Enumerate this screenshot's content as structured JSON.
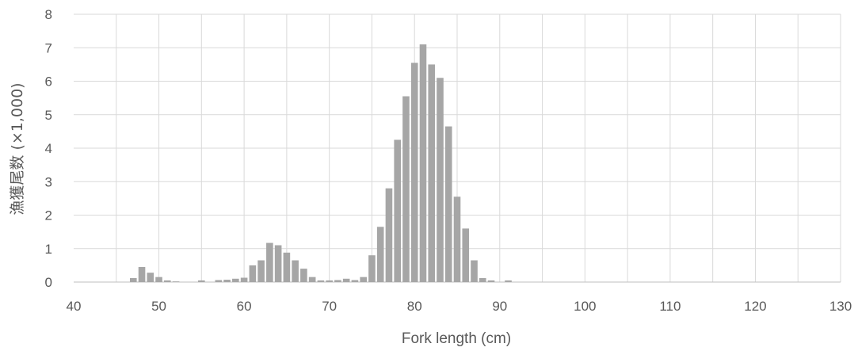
{
  "chart_data": {
    "type": "bar",
    "title": "",
    "xlabel": "Fork length (cm)",
    "ylabel": "漁獲尾数 (×1,000)",
    "xlim": [
      40,
      130
    ],
    "ylim": [
      0,
      8
    ],
    "xticks": [
      40,
      50,
      60,
      70,
      80,
      90,
      100,
      110,
      120,
      130
    ],
    "yticks": [
      0,
      1,
      2,
      3,
      4,
      5,
      6,
      7,
      8
    ],
    "grid": true,
    "legend": "none",
    "bar_color": "#a6a6a6",
    "series": [
      {
        "x": [
          47,
          48,
          49,
          50,
          51,
          52,
          55,
          57,
          58,
          59,
          60,
          61,
          62,
          63,
          64,
          65,
          66,
          67,
          68,
          69,
          70,
          71,
          72,
          73,
          74,
          75,
          76,
          77,
          78,
          79,
          80,
          81,
          82,
          83,
          84,
          85,
          86,
          87,
          88,
          89,
          91
        ],
        "values": [
          0.12,
          0.45,
          0.28,
          0.15,
          0.05,
          0.02,
          0.05,
          0.06,
          0.07,
          0.1,
          0.13,
          0.5,
          0.65,
          1.17,
          1.1,
          0.88,
          0.65,
          0.4,
          0.15,
          0.05,
          0.05,
          0.06,
          0.1,
          0.06,
          0.15,
          0.8,
          1.65,
          2.8,
          4.25,
          5.55,
          6.55,
          7.1,
          6.5,
          6.1,
          4.65,
          2.55,
          1.6,
          0.65,
          0.12,
          0.05,
          0.05
        ]
      }
    ]
  }
}
